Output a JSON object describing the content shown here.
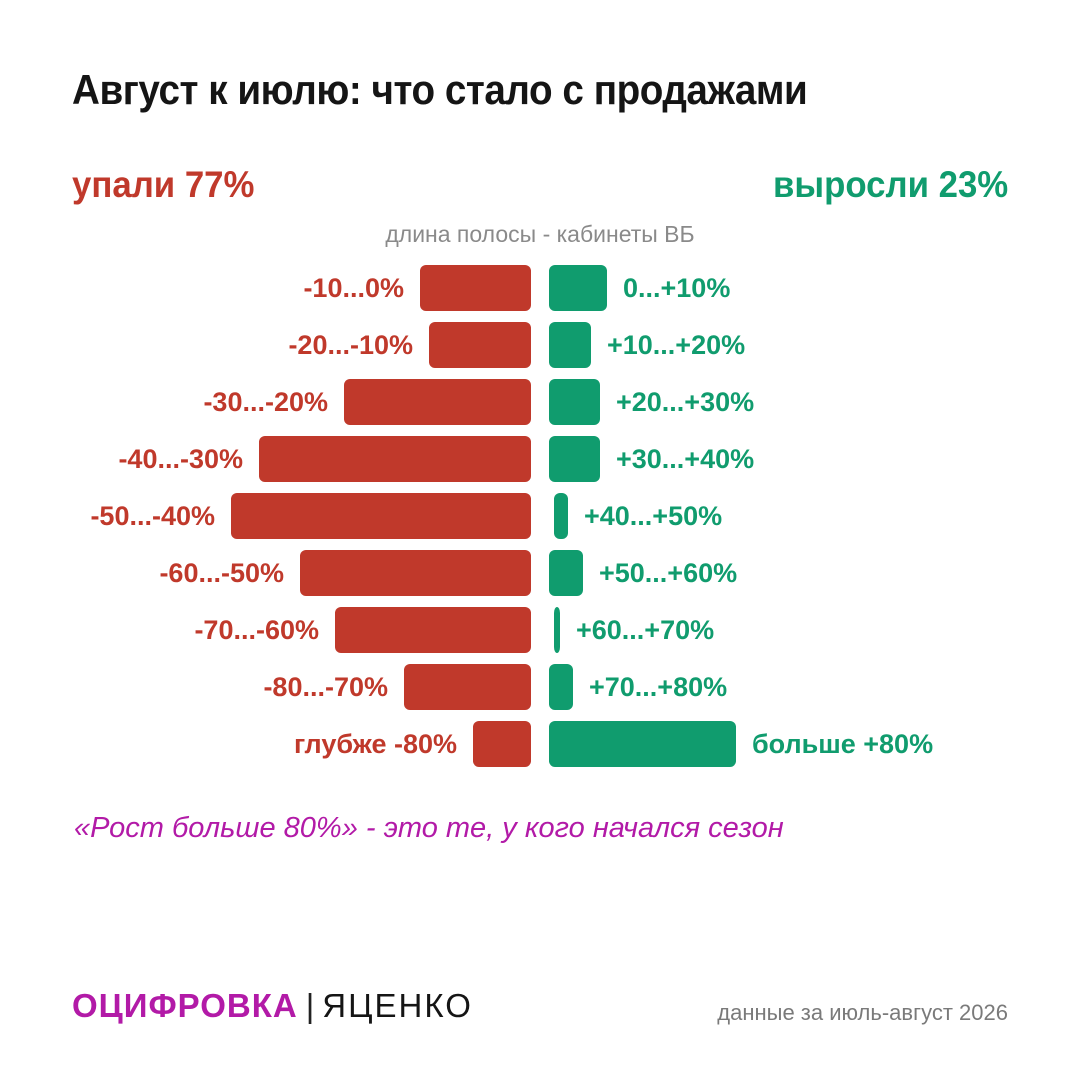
{
  "title": "Август к июлю: что стало с продажами",
  "legend": {
    "down_label": "упали 77%",
    "up_label": "выросли 23%"
  },
  "subtitle": "длина полосы - кабинеты ВБ",
  "colors": {
    "down": "#c0392b",
    "up": "#109c6e",
    "note": "#b21aa7",
    "brand": "#b21aa7"
  },
  "chart_data": {
    "type": "bar",
    "orientation": "horizontal-diverging",
    "title": "Август к июлю: что стало с продажами",
    "subtitle": "длина полосы - кабинеты ВБ",
    "units": "relative bar length",
    "negative": [
      {
        "label": "-10...0%",
        "value": 111
      },
      {
        "label": "-20...-10%",
        "value": 102
      },
      {
        "label": "-30...-20%",
        "value": 187
      },
      {
        "label": "-40...-30%",
        "value": 272
      },
      {
        "label": "-50...-40%",
        "value": 300
      },
      {
        "label": "-60...-50%",
        "value": 231
      },
      {
        "label": "-70...-60%",
        "value": 196
      },
      {
        "label": "-80...-70%",
        "value": 127
      },
      {
        "label": "глубже -80%",
        "value": 58
      }
    ],
    "positive": [
      {
        "label": "0...+10%",
        "value": 58
      },
      {
        "label": "+10...+20%",
        "value": 42
      },
      {
        "label": "+20...+30%",
        "value": 51
      },
      {
        "label": "+30...+40%",
        "value": 51
      },
      {
        "label": "+40...+50%",
        "value": 14
      },
      {
        "label": "+50...+60%",
        "value": 34
      },
      {
        "label": "+60...+70%",
        "value": 6
      },
      {
        "label": "+70...+80%",
        "value": 24
      },
      {
        "label": "больше +80%",
        "value": 187
      }
    ],
    "max_value": 300
  },
  "note": "«Рост больше 80%» - это те, у кого начался сезон",
  "brand": {
    "main": "ОЦИФРОВКА",
    "separator": "|",
    "name": "ЯЦЕНКО"
  },
  "footer_note": "данные за июль-август 2026"
}
